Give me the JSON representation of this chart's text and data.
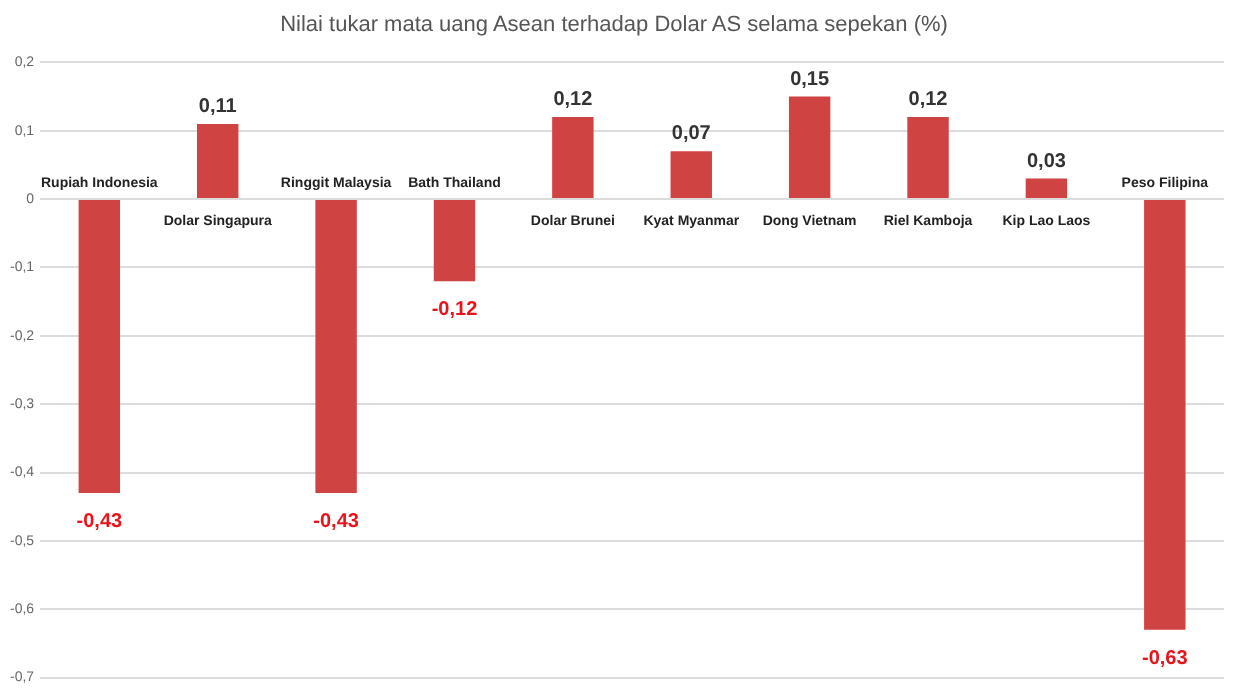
{
  "chart_data": {
    "type": "bar",
    "title": "Nilai tukar mata uang Asean terhadap Dolar AS selama sepekan (%)",
    "categories": [
      "Rupiah Indonesia",
      "Dolar Singapura",
      "Ringgit Malaysia",
      "Bath Thailand",
      "Dolar Brunei",
      "Kyat Myanmar",
      "Dong Vietnam",
      "Riel Kamboja",
      "Kip Lao Laos",
      "Peso Filipina"
    ],
    "values": [
      -0.43,
      0.11,
      -0.43,
      -0.12,
      0.12,
      0.07,
      0.15,
      0.12,
      0.03,
      -0.63
    ],
    "value_labels": [
      "-0,43",
      "0,11",
      "-0,43",
      "-0,12",
      "0,12",
      "0,07",
      "0,15",
      "0,12",
      "0,03",
      "-0,63"
    ],
    "color": "#d04343",
    "ylim": [
      -0.7,
      0.2
    ],
    "yticks": [
      {
        "value": 0.2,
        "label": "0,2"
      },
      {
        "value": 0.1,
        "label": "0,1"
      },
      0,
      {
        "value": -0.1,
        "label": "-0,1"
      },
      {
        "value": -0.2,
        "label": "-0,2"
      },
      {
        "value": -0.3,
        "label": "-0,3"
      },
      {
        "value": -0.4,
        "label": "-0,4"
      },
      {
        "value": -0.5,
        "label": "-0,5"
      },
      {
        "value": -0.6,
        "label": "-0,6"
      },
      {
        "value": -0.7,
        "label": "-0,7"
      }
    ],
    "grid": "y"
  }
}
